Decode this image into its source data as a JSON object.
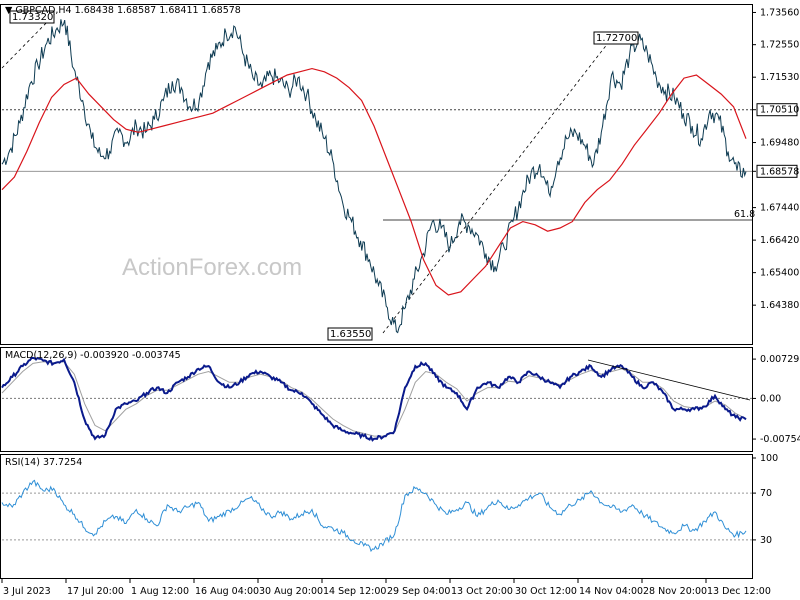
{
  "main_header": {
    "symbol": "GBPCAD,H4",
    "ohlc": "1.68438 1.68587 1.68411 1.68578"
  },
  "macd_header": "MACD(12,26,9) -0.003920 -0.003745",
  "rsi_header": "RSI(14) 37.7254",
  "watermark": "ActionForex.com",
  "colors": {
    "price": "#0e3b52",
    "ma": "#d9141b",
    "macd": "#0a1a8c",
    "signal": "#a0a0a0",
    "rsi": "#2f8fd6",
    "axis": "#000000",
    "level": "#444444"
  },
  "chart_data": [
    {
      "type": "line",
      "panel": "price",
      "y_ticks": [
        "1.73560",
        "1.72550",
        "1.71530",
        "1.70510",
        "1.69480",
        "1.68578",
        "1.67440",
        "1.66420",
        "1.65400",
        "1.64380"
      ],
      "ylim": [
        1.6335,
        1.737
      ],
      "current_price": "1.68578",
      "level_label": "1.70510",
      "fib_label": "61.8",
      "annotations": [
        {
          "label": "1.73320",
          "x": "Jul 2023",
          "y": 1.7332
        },
        {
          "label": "1.63550",
          "x": "Sep 2023",
          "y": 1.6355
        },
        {
          "label": "1.72700",
          "x": "Nov 2023",
          "y": 1.727
        }
      ],
      "series": [
        {
          "kind": "price",
          "values": [
            1.688,
            1.693,
            1.701,
            1.712,
            1.719,
            1.726,
            1.73,
            1.7332,
            1.718,
            1.708,
            1.696,
            1.6905,
            1.692,
            1.698,
            1.695,
            1.7,
            1.698,
            1.702,
            1.708,
            1.714,
            1.712,
            1.706,
            1.708,
            1.72,
            1.724,
            1.729,
            1.731,
            1.722,
            1.715,
            1.712,
            1.716,
            1.714,
            1.711,
            1.715,
            1.71,
            1.702,
            1.696,
            1.688,
            1.676,
            1.67,
            1.664,
            1.658,
            1.65,
            1.643,
            1.6355,
            1.643,
            1.652,
            1.66,
            1.67,
            1.668,
            1.662,
            1.67,
            1.669,
            1.666,
            1.66,
            1.656,
            1.662,
            1.67,
            1.678,
            1.685,
            1.688,
            1.679,
            1.689,
            1.696,
            1.698,
            1.694,
            1.688,
            1.7,
            1.716,
            1.713,
            1.722,
            1.727,
            1.723,
            1.715,
            1.711,
            1.709,
            1.704,
            1.7,
            1.696,
            1.705,
            1.702,
            1.692,
            1.686,
            1.6857
          ]
        },
        {
          "kind": "ma",
          "values": [
            1.68,
            1.684,
            1.692,
            1.701,
            1.709,
            1.713,
            1.715,
            1.71,
            1.706,
            1.702,
            1.699,
            1.698,
            1.699,
            1.7,
            1.701,
            1.702,
            1.703,
            1.704,
            1.706,
            1.708,
            1.71,
            1.712,
            1.714,
            1.716,
            1.717,
            1.718,
            1.717,
            1.715,
            1.712,
            1.708,
            1.7,
            1.69,
            1.68,
            1.67,
            1.658,
            1.65,
            1.647,
            1.648,
            1.652,
            1.656,
            1.662,
            1.668,
            1.67,
            1.669,
            1.667,
            1.668,
            1.67,
            1.676,
            1.68,
            1.683,
            1.688,
            1.694,
            1.699,
            1.704,
            1.71,
            1.715,
            1.716,
            1.713,
            1.71,
            1.706,
            1.696
          ]
        }
      ]
    },
    {
      "type": "line",
      "panel": "macd",
      "y_ticks": [
        "0.007297",
        "0.00",
        "-0.007541"
      ],
      "ylim": [
        -0.0092,
        0.0088
      ],
      "series": [
        {
          "kind": "macd",
          "values": [
            0.002,
            0.004,
            0.006,
            0.0075,
            0.007,
            0.0065,
            0.0072,
            0.003,
            -0.004,
            -0.0075,
            -0.0068,
            -0.002,
            -0.001,
            -0.0005,
            0.001,
            0.002,
            0.001,
            0.003,
            0.004,
            0.0055,
            0.006,
            0.003,
            0.002,
            0.003,
            0.0045,
            0.005,
            0.004,
            0.003,
            0.0015,
            0.001,
            -0.001,
            -0.003,
            -0.005,
            -0.006,
            -0.0065,
            -0.007,
            -0.0075,
            -0.007,
            -0.006,
            0.002,
            0.006,
            0.0065,
            0.004,
            0.002,
            0.001,
            -0.002,
            0.002,
            0.003,
            0.002,
            0.004,
            0.003,
            0.005,
            0.004,
            0.003,
            0.002,
            0.004,
            0.005,
            0.006,
            0.004,
            0.0055,
            0.006,
            0.004,
            0.002,
            0.003,
            0.001,
            -0.002,
            -0.002,
            -0.002,
            -0.0015,
            0.0005,
            -0.002,
            -0.0035,
            -0.0039
          ]
        },
        {
          "kind": "signal",
          "values": [
            0.001,
            0.003,
            0.005,
            0.0065,
            0.0068,
            0.0066,
            0.0068,
            0.0045,
            -0.001,
            -0.005,
            -0.006,
            -0.004,
            -0.002,
            -0.001,
            0.0005,
            0.0015,
            0.0015,
            0.0025,
            0.0035,
            0.0045,
            0.005,
            0.004,
            0.003,
            0.003,
            0.004,
            0.0045,
            0.004,
            0.0033,
            0.002,
            0.0012,
            -0.0002,
            -0.002,
            -0.0038,
            -0.005,
            -0.006,
            -0.0065,
            -0.007,
            -0.007,
            -0.0062,
            -0.002,
            0.003,
            0.005,
            0.0045,
            0.003,
            0.0018,
            -0.0005,
            0.001,
            0.002,
            0.002,
            0.0032,
            0.003,
            0.0042,
            0.0038,
            0.0032,
            0.0025,
            0.0035,
            0.0045,
            0.0052,
            0.0045,
            0.005,
            0.0055,
            0.0045,
            0.003,
            0.003,
            0.0018,
            -0.0005,
            -0.0015,
            -0.0018,
            -0.0016,
            -0.0005,
            -0.0012,
            -0.0028,
            -0.0037
          ]
        }
      ]
    },
    {
      "type": "line",
      "panel": "rsi",
      "y_ticks": [
        "100",
        "70",
        "30"
      ],
      "ylim": [
        0,
        100
      ],
      "series": [
        {
          "kind": "rsi",
          "values": [
            62,
            58,
            70,
            80,
            72,
            74,
            60,
            52,
            40,
            35,
            46,
            50,
            44,
            56,
            48,
            42,
            60,
            54,
            58,
            62,
            46,
            50,
            55,
            60,
            66,
            58,
            50,
            54,
            48,
            52,
            56,
            42,
            40,
            36,
            30,
            25,
            22,
            28,
            35,
            68,
            74,
            70,
            60,
            52,
            56,
            62,
            50,
            58,
            64,
            56,
            60,
            66,
            70,
            58,
            52,
            60,
            64,
            72,
            62,
            58,
            54,
            60,
            52,
            46,
            40,
            36,
            42,
            38,
            46,
            54,
            40,
            34,
            37.7
          ]
        }
      ],
      "levels": [
        70,
        30
      ]
    }
  ],
  "x_axis": {
    "ticks": [
      "3 Jul 2023",
      "17 Jul 20:00",
      "1 Aug 12:00",
      "16 Aug 04:00",
      "30 Aug 20:00",
      "14 Sep 12:00",
      "29 Sep 04:00",
      "13 Oct 20:00",
      "30 Oct 12:00",
      "14 Nov 04:00",
      "28 Nov 20:00",
      "13 Dec 12:00"
    ]
  }
}
